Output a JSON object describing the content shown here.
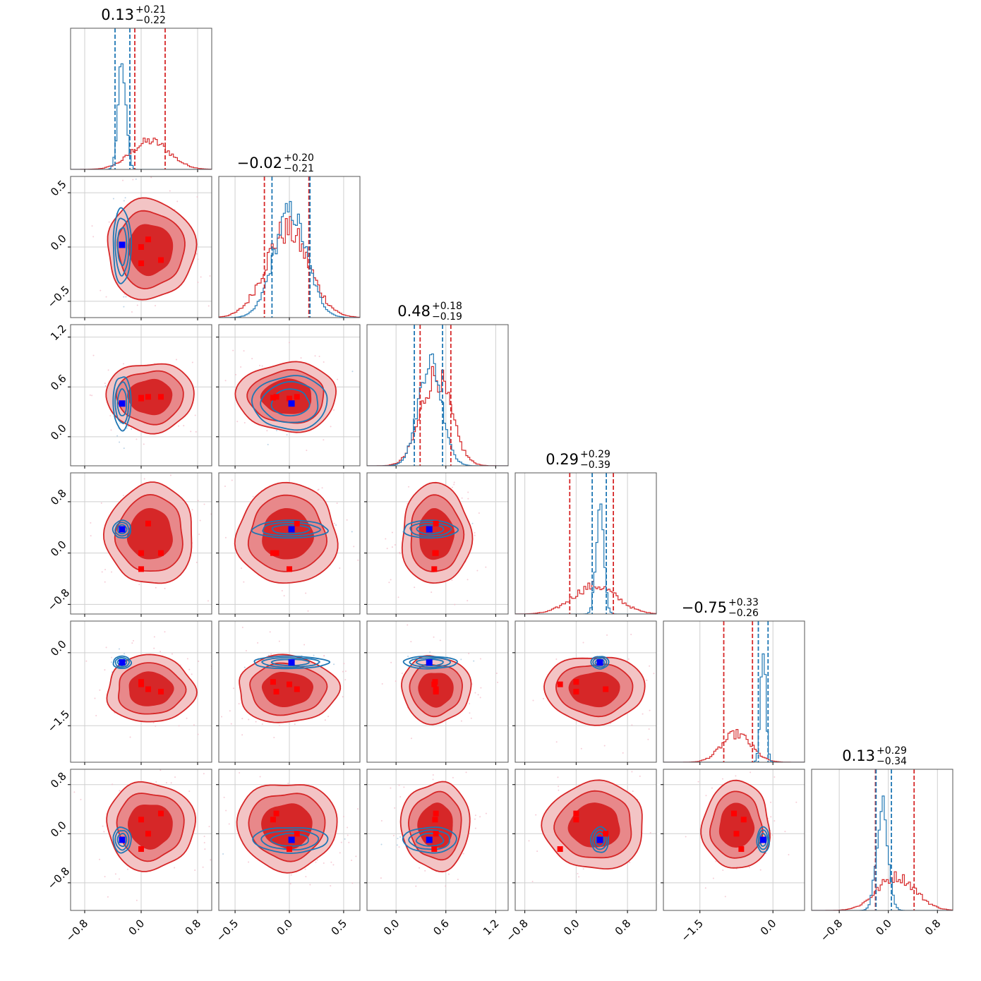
{
  "chart_data": {
    "type": "corner",
    "grid": true,
    "colors": {
      "red": "#d62728",
      "red_mid": "#e8888a",
      "red_light": "#f3c4c5",
      "blue": "#1f77b4",
      "marker_blue": "#0000ff",
      "marker_red": "#ff0000"
    },
    "params": [
      {
        "range": [
          -1.0,
          1.0
        ],
        "ticks": [
          -0.8,
          0.0,
          0.8
        ],
        "tick_labels": [
          "−0.8",
          "0.0",
          "0.8"
        ],
        "title": {
          "main": "0.13",
          "plus": "+0.21",
          "minus": "−0.22"
        },
        "red": {
          "mean": 0.13,
          "sd": 0.27,
          "quantiles": [
            -0.09,
            0.34
          ]
        },
        "blue": {
          "mean": -0.27,
          "sd": 0.055,
          "quantiles": [
            -0.37,
            -0.16
          ]
        },
        "truth": -0.27
      },
      {
        "range": [
          -0.65,
          0.65
        ],
        "ticks": [
          -0.5,
          0.0,
          0.5
        ],
        "tick_labels": [
          "−0.5",
          "0.0",
          "0.5"
        ],
        "title": {
          "main": "−0.02",
          "plus": "+0.20",
          "minus": "−0.21"
        },
        "red": {
          "mean": -0.02,
          "sd": 0.2,
          "quantiles": [
            -0.23,
            0.18
          ]
        },
        "blue": {
          "mean": 0.01,
          "sd": 0.15,
          "quantiles": [
            -0.16,
            0.19
          ]
        },
        "truth": 0.02
      },
      {
        "range": [
          -0.35,
          1.35
        ],
        "ticks": [
          0.0,
          0.6,
          1.2
        ],
        "tick_labels": [
          "0.0",
          "0.6",
          "1.2"
        ],
        "title": {
          "main": "0.48",
          "plus": "+0.18",
          "minus": "−0.19"
        },
        "red": {
          "mean": 0.48,
          "sd": 0.18,
          "quantiles": [
            0.29,
            0.66
          ]
        },
        "blue": {
          "mean": 0.41,
          "sd": 0.14,
          "quantiles": [
            0.22,
            0.56
          ]
        },
        "truth": 0.4
      },
      {
        "range": [
          -0.95,
          1.25
        ],
        "ticks": [
          -0.8,
          0.0,
          0.8
        ],
        "tick_labels": [
          "−0.8",
          "0.0",
          "0.8"
        ],
        "title": {
          "main": "0.29",
          "plus": "+0.29",
          "minus": "−0.39"
        },
        "red": {
          "mean": 0.29,
          "sd": 0.34,
          "quantiles": [
            -0.1,
            0.58
          ]
        },
        "blue": {
          "mean": 0.37,
          "sd": 0.06,
          "quantiles": [
            0.25,
            0.47
          ]
        },
        "truth": 0.37
      },
      {
        "range": [
          -2.25,
          0.65
        ],
        "ticks": [
          -1.5,
          0.0
        ],
        "tick_labels": [
          "−1.5",
          "0.0"
        ],
        "title": {
          "main": "−0.75",
          "plus": "+0.33",
          "minus": "−0.26"
        },
        "red": {
          "mean": -0.75,
          "sd": 0.3,
          "quantiles": [
            -1.01,
            -0.42
          ]
        },
        "blue": {
          "mean": -0.2,
          "sd": 0.055,
          "quantiles": [
            -0.3,
            -0.1
          ]
        },
        "truth": -0.2
      },
      {
        "range": [
          -1.25,
          1.05
        ],
        "ticks": [
          -0.8,
          0.0,
          0.8
        ],
        "tick_labels": [
          "−0.8",
          "0.0",
          "0.8"
        ],
        "title": {
          "main": "0.13",
          "plus": "+0.29",
          "minus": "−0.34"
        },
        "red": {
          "mean": 0.13,
          "sd": 0.31,
          "quantiles": [
            -0.21,
            0.42
          ]
        },
        "blue": {
          "mean": -0.1,
          "sd": 0.09,
          "quantiles": [
            -0.2,
            0.05
          ]
        },
        "truth": -0.1
      }
    ],
    "red_markers": [
      [
        0.0,
        -0.15,
        0.47,
        0.0,
        -0.6,
        0.23
      ],
      [
        0.1,
        0.07,
        0.48,
        0.46,
        -0.75,
        0.0
      ],
      [
        0.28,
        -0.12,
        0.48,
        0.0,
        -0.8,
        0.33
      ],
      [
        0.0,
        0.0,
        0.46,
        -0.25,
        -0.65,
        -0.25
      ]
    ]
  }
}
